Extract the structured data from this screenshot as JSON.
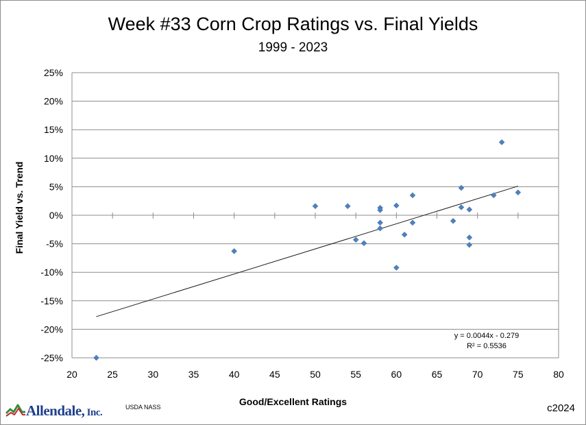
{
  "chart_data": {
    "type": "scatter",
    "title": "Week #33 Corn Crop Ratings vs. Final Yields",
    "subtitle": "1999 - 2023",
    "xlabel": "Good/Excellent Ratings",
    "ylabel": "Final Yield vs. Trend",
    "xlim": [
      20,
      80
    ],
    "ylim": [
      -25,
      25
    ],
    "x_ticks": [
      "20",
      "25",
      "30",
      "35",
      "40",
      "45",
      "50",
      "55",
      "60",
      "65",
      "70",
      "75",
      "80"
    ],
    "y_ticks": [
      "25%",
      "20%",
      "15%",
      "10%",
      "5%",
      "0%",
      "-5%",
      "-10%",
      "-15%",
      "-20%",
      "-25%"
    ],
    "grid": "horizontal",
    "marker_color": "#4f81bd",
    "points": [
      {
        "x": 23,
        "y": -25.0
      },
      {
        "x": 40,
        "y": -6.3
      },
      {
        "x": 50,
        "y": 1.6
      },
      {
        "x": 54,
        "y": 1.6
      },
      {
        "x": 55,
        "y": -4.3
      },
      {
        "x": 56,
        "y": -4.9
      },
      {
        "x": 58,
        "y": 1.3
      },
      {
        "x": 58,
        "y": 0.9
      },
      {
        "x": 58,
        "y": -1.3
      },
      {
        "x": 58,
        "y": -2.3
      },
      {
        "x": 60,
        "y": 1.7
      },
      {
        "x": 60,
        "y": -9.2
      },
      {
        "x": 61,
        "y": -3.4
      },
      {
        "x": 62,
        "y": 3.5
      },
      {
        "x": 62,
        "y": -1.3
      },
      {
        "x": 67,
        "y": -1.0
      },
      {
        "x": 68,
        "y": 4.8
      },
      {
        "x": 68,
        "y": 1.4
      },
      {
        "x": 69,
        "y": 1.0
      },
      {
        "x": 69,
        "y": -3.9
      },
      {
        "x": 69,
        "y": -5.2
      },
      {
        "x": 72,
        "y": 3.5
      },
      {
        "x": 73,
        "y": 12.8
      },
      {
        "x": 75,
        "y": 4.0
      }
    ],
    "trendline": {
      "x_range": [
        23,
        75
      ],
      "equation": "y = 0.0044x - 0.279",
      "r_squared": "R² = 0.5536"
    }
  },
  "source": "USDA NASS",
  "copyright": "c2024",
  "logo": {
    "main": "Allendale,",
    "suffix": " Inc.",
    "colors": {
      "mark_green": "#3a8a3a",
      "mark_red": "#c0282d",
      "text": "#1f3f8f"
    }
  }
}
